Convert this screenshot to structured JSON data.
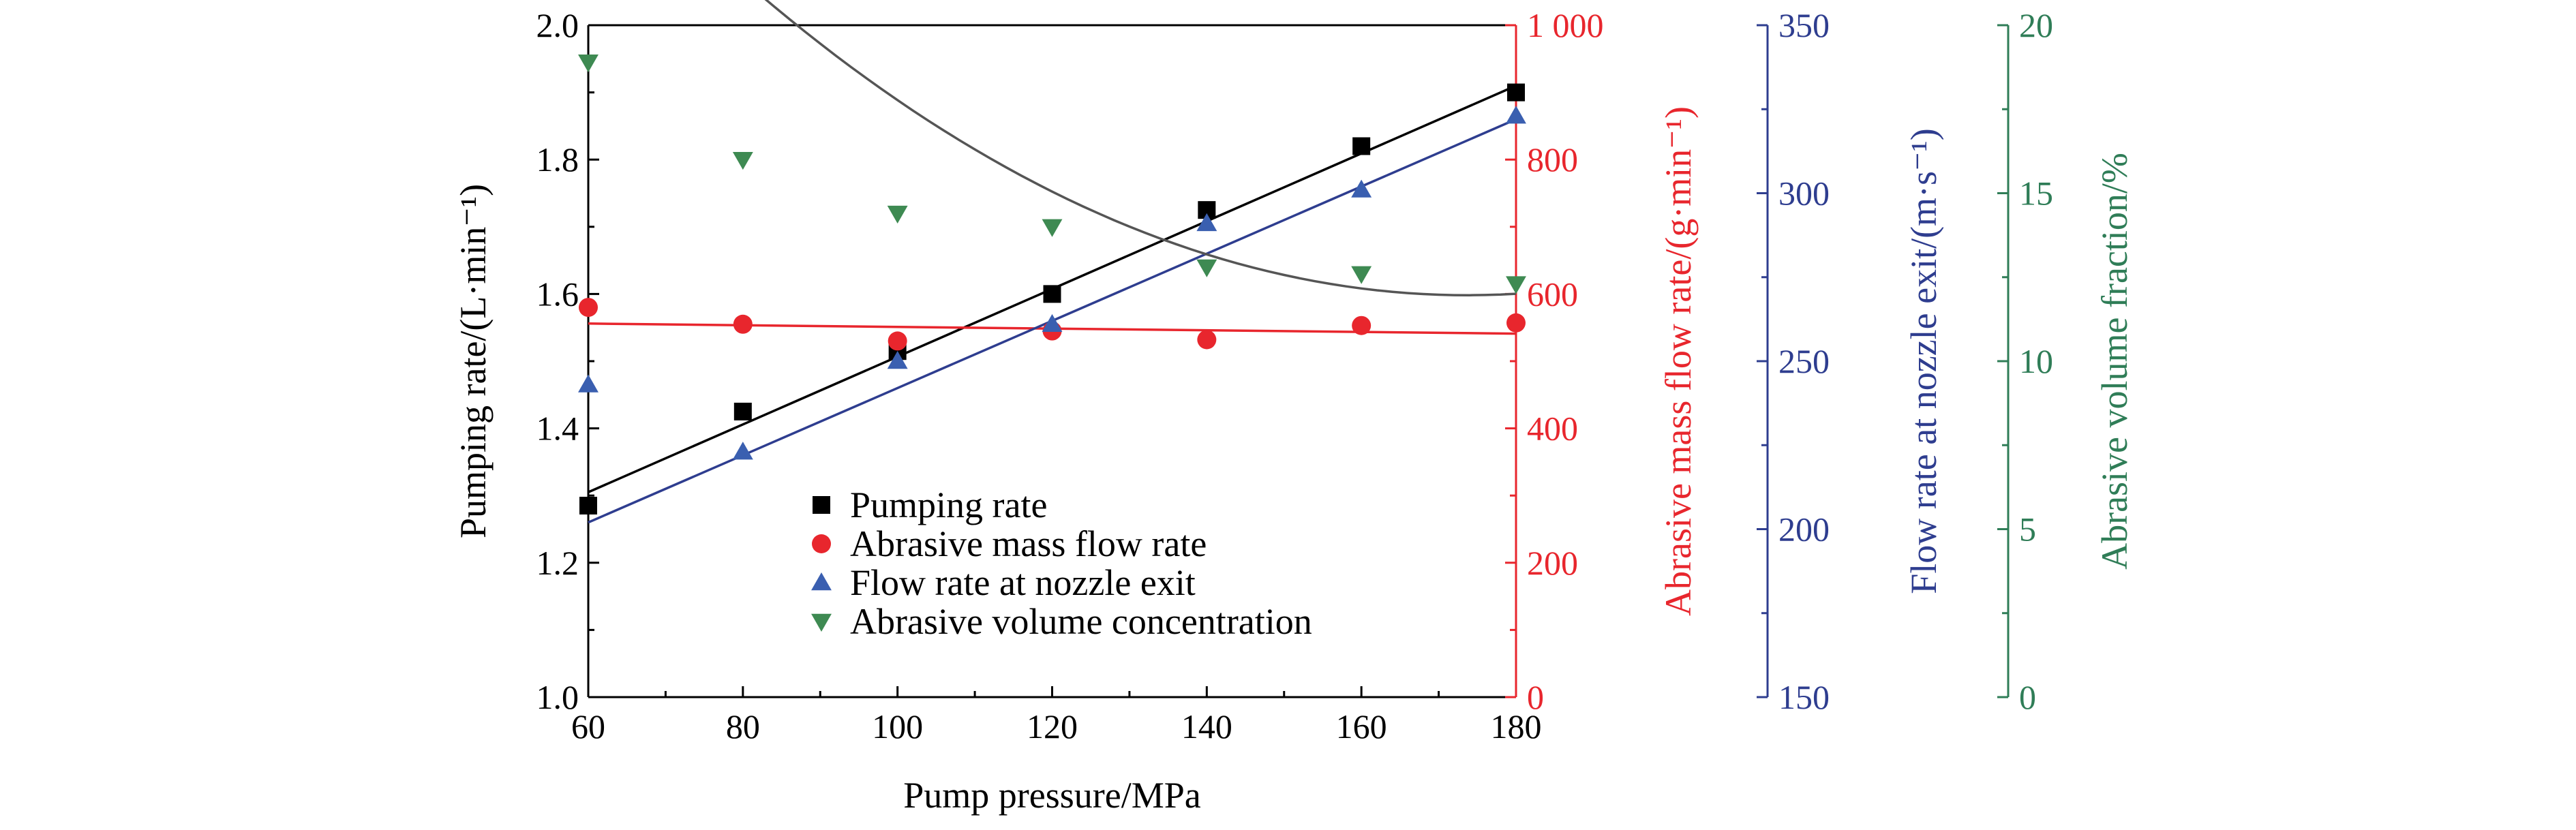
{
  "colors": {
    "pumping_rate": "#000000",
    "abrasive_mass": "#e8262d",
    "nozzle_flow": "#2e3d8f",
    "volume_fraction": "#2f7d57",
    "fit_gray": "#555555",
    "marker_blue": "#3a5fb0",
    "marker_green": "#3e8a52"
  },
  "chart_data": {
    "type": "scatter",
    "x": [
      60,
      80,
      100,
      120,
      140,
      160,
      180
    ],
    "xlabel": "Pump pressure/MPa",
    "xlim": [
      60,
      180
    ],
    "x_ticks": [
      "60",
      "80",
      "100",
      "120",
      "140",
      "160",
      "180"
    ],
    "axes": [
      {
        "id": "left",
        "label": "Pumping rate/(L·min⁻¹)",
        "lim": [
          1.0,
          2.0
        ],
        "ticks": [
          "1.0",
          "1.2",
          "1.4",
          "1.6",
          "1.8",
          "2.0"
        ],
        "color": "#000000"
      },
      {
        "id": "right1",
        "label": "Abrasive mass flow rate/(g·min⁻¹)",
        "lim": [
          0,
          1000
        ],
        "ticks": [
          "0",
          "200",
          "400",
          "600",
          "800",
          "1 000"
        ],
        "color": "#e8262d"
      },
      {
        "id": "right2",
        "label": "Flow rate at nozzle exit/(m·s⁻¹)",
        "lim": [
          150,
          350
        ],
        "ticks": [
          "150",
          "200",
          "250",
          "300",
          "350"
        ],
        "color": "#2e3d8f"
      },
      {
        "id": "right3",
        "label": "Abrasive volume fraction/%",
        "lim": [
          0,
          20
        ],
        "ticks": [
          "0",
          "5",
          "10",
          "15",
          "20"
        ],
        "color": "#2f7d57"
      }
    ],
    "series": [
      {
        "name": "Pumping rate",
        "axis": "left",
        "marker": "square",
        "values": [
          1.285,
          1.425,
          1.515,
          1.6,
          1.725,
          1.82,
          1.9
        ],
        "fit": [
          1.305,
          1.91
        ]
      },
      {
        "name": "Abrasive mass flow rate",
        "axis": "right1",
        "marker": "circle",
        "values": [
          580,
          555,
          530,
          545,
          532,
          553,
          557
        ],
        "fit": [
          556,
          541
        ]
      },
      {
        "name": "Flow rate at nozzle exit",
        "axis": "right2",
        "marker": "triangle-up",
        "values": [
          243,
          223,
          250,
          261,
          291,
          301,
          323
        ],
        "fit": [
          202,
          322
        ]
      },
      {
        "name": "Abrasive volume concentration",
        "axis": "right3",
        "marker": "triangle-down",
        "values": [
          18.9,
          16.0,
          14.4,
          14.0,
          12.8,
          12.6,
          12.3
        ],
        "fit_poly": [
          44.2,
          -0.3711,
          0.001068
        ]
      }
    ],
    "legend_position": "lower-center",
    "grid": false
  }
}
